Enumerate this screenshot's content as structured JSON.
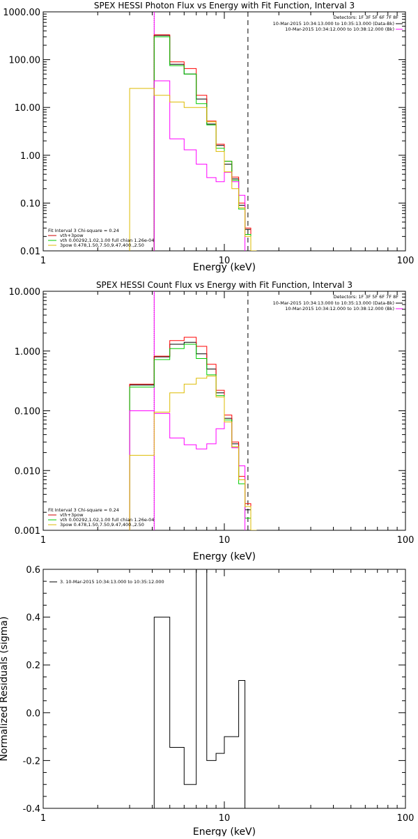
{
  "chart_data": [
    {
      "type": "line",
      "title": "SPEX HESSI Photon Flux vs Energy with Fit Function, Interval 3",
      "xlabel": "Energy (keV)",
      "ylabel": "",
      "xscale": "log",
      "yscale": "log",
      "xlim": [
        1,
        100
      ],
      "ylim": [
        0.01,
        1000
      ],
      "xticks": [
        {
          "v": 1,
          "label": "1"
        },
        {
          "v": 10,
          "label": "10"
        },
        {
          "v": 100,
          "label": "100"
        }
      ],
      "yticks": [
        {
          "v": 1000,
          "label": "1000.00"
        },
        {
          "v": 100,
          "label": "100.00"
        },
        {
          "v": 10,
          "label": "10.00"
        },
        {
          "v": 1,
          "label": "1.00"
        },
        {
          "v": 0.1,
          "label": "0.10"
        },
        {
          "v": 0.01,
          "label": "0.01"
        }
      ],
      "vlines": [
        {
          "x": 4.1,
          "style": "dotted",
          "color": "#000000"
        },
        {
          "x": 4.1,
          "style": "solid",
          "color": "#ff00ff"
        },
        {
          "x": 13.5,
          "style": "dashed",
          "color": "#000000"
        }
      ],
      "legend_tr": {
        "header": "Detectors: 1F 3F 5F 6F 7F 8F",
        "entries": [
          {
            "text": "10-Mar-2015 10:34:13.000 to 10:35:13.000 (Data-Bk)",
            "color": "#000000"
          },
          {
            "text": "10-Mar-2015 10:34:12.000 to 10:38:12.000 (Bk)",
            "color": "#ff00ff"
          }
        ]
      },
      "legend_bl": {
        "header": "Fit Interval 3   Chi-square = 0.24",
        "entries": [
          {
            "text": "vth+3pow",
            "color": "#cc0000"
          },
          {
            "text": "vth 0.00292,1.02,1.00  full chian 1.26e-04",
            "color": "#00cc00"
          },
          {
            "text": "3pow 0.478,1.50,7.50,9.47,400.,2.50",
            "color": "#ddbb00"
          }
        ]
      },
      "edges": [
        3.0,
        4.1,
        5.0,
        6.0,
        7.0,
        8.0,
        9.0,
        10.0,
        11.0,
        12.0,
        13.0,
        14.0,
        15.0
      ],
      "series": [
        {
          "color": "#000000",
          "values": [
            null,
            320,
            80,
            50,
            15,
            4.5,
            1.6,
            0.65,
            0.32,
            0.09,
            0.028,
            0.01
          ]
        },
        {
          "color": "#ff0000",
          "values": [
            null,
            330,
            90,
            65,
            18,
            5.2,
            1.7,
            0.75,
            0.35,
            0.1,
            0.03,
            0.01
          ]
        },
        {
          "color": "#00cc00",
          "values": [
            null,
            300,
            75,
            50,
            12,
            4.3,
            1.4,
            0.75,
            0.3,
            0.075,
            0.022,
            0.01
          ]
        },
        {
          "color": "#ff00ff",
          "values": [
            null,
            36,
            2.2,
            1.3,
            0.65,
            0.34,
            0.28,
            0.44,
            0.28,
            0.145,
            null,
            null
          ]
        },
        {
          "color": "#ddbb00",
          "values": [
            25,
            18,
            13,
            10,
            10,
            5,
            1.2,
            0.45,
            0.2,
            0.08,
            0.02,
            0.01
          ]
        }
      ]
    },
    {
      "type": "line",
      "title": "SPEX HESSI Count Flux vs Energy with Fit Function, Interval 3",
      "xlabel": "Energy (keV)",
      "ylabel": "",
      "xscale": "log",
      "yscale": "log",
      "xlim": [
        1,
        100
      ],
      "ylim": [
        0.001,
        10
      ],
      "xticks": [
        {
          "v": 1,
          "label": "1"
        },
        {
          "v": 10,
          "label": "10"
        },
        {
          "v": 100,
          "label": "100"
        }
      ],
      "yticks": [
        {
          "v": 10,
          "label": "10.000"
        },
        {
          "v": 1,
          "label": "1.000"
        },
        {
          "v": 0.1,
          "label": "0.100"
        },
        {
          "v": 0.01,
          "label": "0.010"
        },
        {
          "v": 0.001,
          "label": "0.001"
        }
      ],
      "vlines": [
        {
          "x": 4.1,
          "style": "dotted",
          "color": "#000000"
        },
        {
          "x": 4.1,
          "style": "solid",
          "color": "#ff00ff"
        },
        {
          "x": 13.5,
          "style": "dashed",
          "color": "#000000"
        }
      ],
      "legend_tr": {
        "header": "Detectors: 1F 3F 5F 6F 7F 8F",
        "entries": [
          {
            "text": "10-Mar-2015 10:34:13.000 to 10:35:13.000 (Data-Bk)",
            "color": "#000000"
          },
          {
            "text": "10-Mar-2015 10:34:12.000 to 10:38:12.000 (Bk)",
            "color": "#ff00ff"
          }
        ]
      },
      "legend_bl": {
        "header": "Fit Interval 3   Chi-square = 0.24",
        "entries": [
          {
            "text": "vth+3pow",
            "color": "#cc0000"
          },
          {
            "text": "vth 0.00292,1.02,1.00  full chian 1.26e-04",
            "color": "#00cc00"
          },
          {
            "text": "3pow 0.478,1.50,7.50,9.47,400.,2.50",
            "color": "#ddbb00"
          }
        ]
      },
      "edges": [
        3.0,
        4.1,
        5.0,
        6.0,
        7.0,
        8.0,
        9.0,
        10.0,
        11.0,
        12.0,
        13.0,
        14.0,
        15.0
      ],
      "series": [
        {
          "color": "#000000",
          "values": [
            0.27,
            0.8,
            1.3,
            1.4,
            0.9,
            0.5,
            0.2,
            0.075,
            0.028,
            0.007,
            0.0022,
            0.001
          ]
        },
        {
          "color": "#ff0000",
          "values": [
            0.28,
            0.82,
            1.5,
            1.7,
            1.2,
            0.6,
            0.22,
            0.085,
            0.03,
            0.008,
            0.0028,
            0.001
          ]
        },
        {
          "color": "#00cc00",
          "values": [
            0.25,
            0.72,
            1.1,
            1.3,
            0.75,
            0.4,
            0.18,
            0.07,
            0.025,
            0.006,
            0.0016,
            0.001
          ]
        },
        {
          "color": "#ff00ff",
          "values": [
            0.1,
            0.09,
            0.035,
            0.027,
            0.023,
            0.028,
            0.05,
            0.065,
            0.024,
            0.012,
            null,
            null
          ]
        },
        {
          "color": "#ddbb00",
          "values": [
            0.018,
            0.095,
            0.2,
            0.28,
            0.35,
            0.38,
            0.17,
            0.065,
            0.025,
            0.007,
            0.0025,
            0.001
          ]
        }
      ]
    },
    {
      "type": "line",
      "title": "",
      "xlabel": "Energy (keV)",
      "ylabel": "Normalized Residuals (sigma)",
      "xscale": "log",
      "yscale": "linear",
      "xlim": [
        1,
        100
      ],
      "ylim": [
        -0.4,
        0.6
      ],
      "xticks": [
        {
          "v": 1,
          "label": "1"
        },
        {
          "v": 10,
          "label": "10"
        },
        {
          "v": 100,
          "label": "100"
        }
      ],
      "yticks": [
        {
          "v": 0.6,
          "label": "0.6"
        },
        {
          "v": 0.4,
          "label": "0.4"
        },
        {
          "v": 0.2,
          "label": "0.2"
        },
        {
          "v": 0.0,
          "label": "0.0"
        },
        {
          "v": -0.2,
          "label": "-0.2"
        },
        {
          "v": -0.4,
          "label": "-0.4"
        }
      ],
      "vlines": [],
      "legend_tl": {
        "text": "3. 10-Mar-2015 10:34:13.000 to 10:35:12.000",
        "color": "#000000"
      },
      "edges": [
        4.1,
        5.0,
        6.0,
        7.0,
        8.0,
        9.0,
        10.0,
        11.0,
        12.0,
        13.0,
        14.0
      ],
      "series": [
        {
          "color": "#000000",
          "values": [
            0.4,
            -0.145,
            -0.3,
            0.6,
            -0.2,
            -0.17,
            -0.1,
            -0.1,
            0.135,
            -0.4
          ]
        }
      ]
    }
  ]
}
